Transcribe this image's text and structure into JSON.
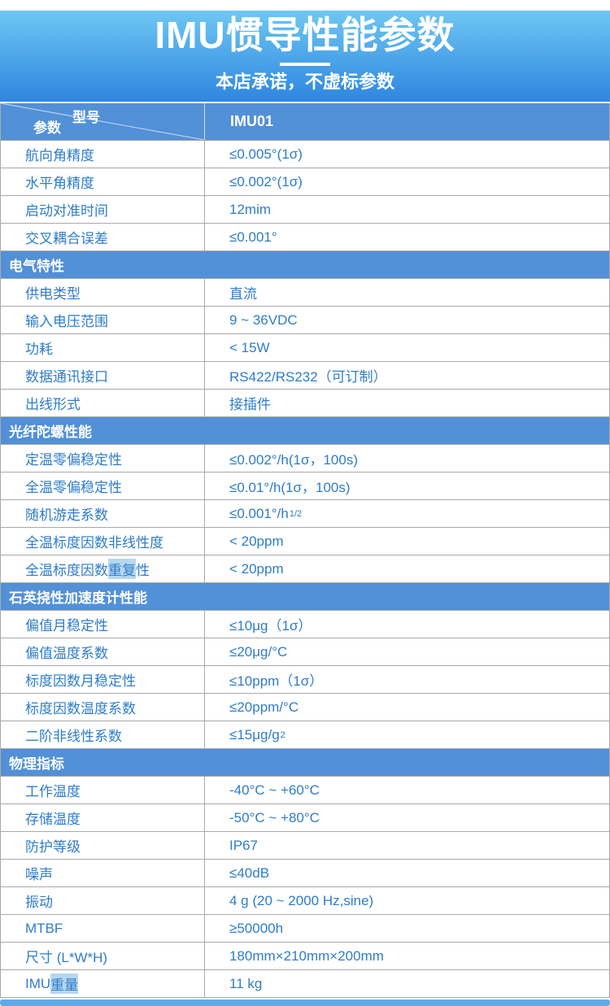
{
  "banner": {
    "title": "IMU惯导性能参数",
    "subtitle": "本店承诺，不虚标参数"
  },
  "colors": {
    "banner_top": "#6ec7f2",
    "banner_bottom": "#2e86e0",
    "header_blue": "#5290d7",
    "text_blue": "#2e7cc9",
    "divider_gray": "#a9a9a9",
    "bottom_bar": "#5caae6",
    "highlight": "#b5d7f1"
  },
  "table": {
    "header": {
      "model_label": "型号",
      "param_label": "参数",
      "model_value": "IMU01"
    },
    "sections": [
      {
        "title": null,
        "rows": [
          {
            "label": "航向角精度",
            "value": "≤0.005°(1σ)"
          },
          {
            "label": "水平角精度",
            "value": "≤0.002°(1σ)"
          },
          {
            "label": "启动对准时间",
            "value": "12mim"
          },
          {
            "label": "交叉耦合误差",
            "value": "≤0.001°"
          }
        ]
      },
      {
        "title": "电气特性",
        "rows": [
          {
            "label": "供电类型",
            "value": "直流"
          },
          {
            "label": "输入电压范围",
            "value": "9 ~ 36VDC"
          },
          {
            "label": "功耗",
            "value": "< 15W"
          },
          {
            "label": "数据通讯接口",
            "value": "RS422/RS232（可订制）"
          },
          {
            "label": "出线形式",
            "value": "接插件"
          }
        ]
      },
      {
        "title": "光纤陀螺性能",
        "rows": [
          {
            "label": "定温零偏稳定性",
            "value": "≤0.002°/h(1σ，100s)"
          },
          {
            "label": "全温零偏稳定性",
            "value": "≤0.01°/h(1σ，100s)"
          },
          {
            "label": "随机游走系数",
            "value": "≤0.001°/h",
            "value_sup": "1/2"
          },
          {
            "label": "全温标度因数非线性度",
            "value": "< 20ppm"
          },
          {
            "label": "全温标度因数重复性",
            "value": "< 20ppm",
            "label_parts": [
              "全温标度因数",
              "重复",
              "性"
            ]
          }
        ]
      },
      {
        "title": "石英挠性加速度计性能",
        "rows": [
          {
            "label": "偏值月稳定性",
            "value": "≤10μg（1σ）"
          },
          {
            "label": "偏值温度系数",
            "value": "≤20μg/°C"
          },
          {
            "label": "标度因数月稳定性",
            "value": "≤10ppm（1σ）"
          },
          {
            "label": "标度因数温度系数",
            "value": "≤20ppm/°C"
          },
          {
            "label": "二阶非线性系数",
            "value": "≤15μg/g",
            "value_sup": "2"
          }
        ]
      },
      {
        "title": "物理指标",
        "rows": [
          {
            "label": "工作温度",
            "value": "-40°C ~ +60°C"
          },
          {
            "label": "存储温度",
            "value": "-50°C ~ +80°C"
          },
          {
            "label": "防护等级",
            "value": "IP67"
          },
          {
            "label": "噪声",
            "value": "≤40dB"
          },
          {
            "label": "振动",
            "value": "4 g (20 ~ 2000 Hz,sine)"
          },
          {
            "label": "MTBF",
            "value": "≥50000h"
          },
          {
            "label": "尺寸 (L*W*H)",
            "value": "180mm×210mm×200mm"
          },
          {
            "label": "IMU重量",
            "value": "11 kg",
            "label_parts": [
              "IMU",
              "重量",
              ""
            ]
          }
        ]
      }
    ]
  }
}
